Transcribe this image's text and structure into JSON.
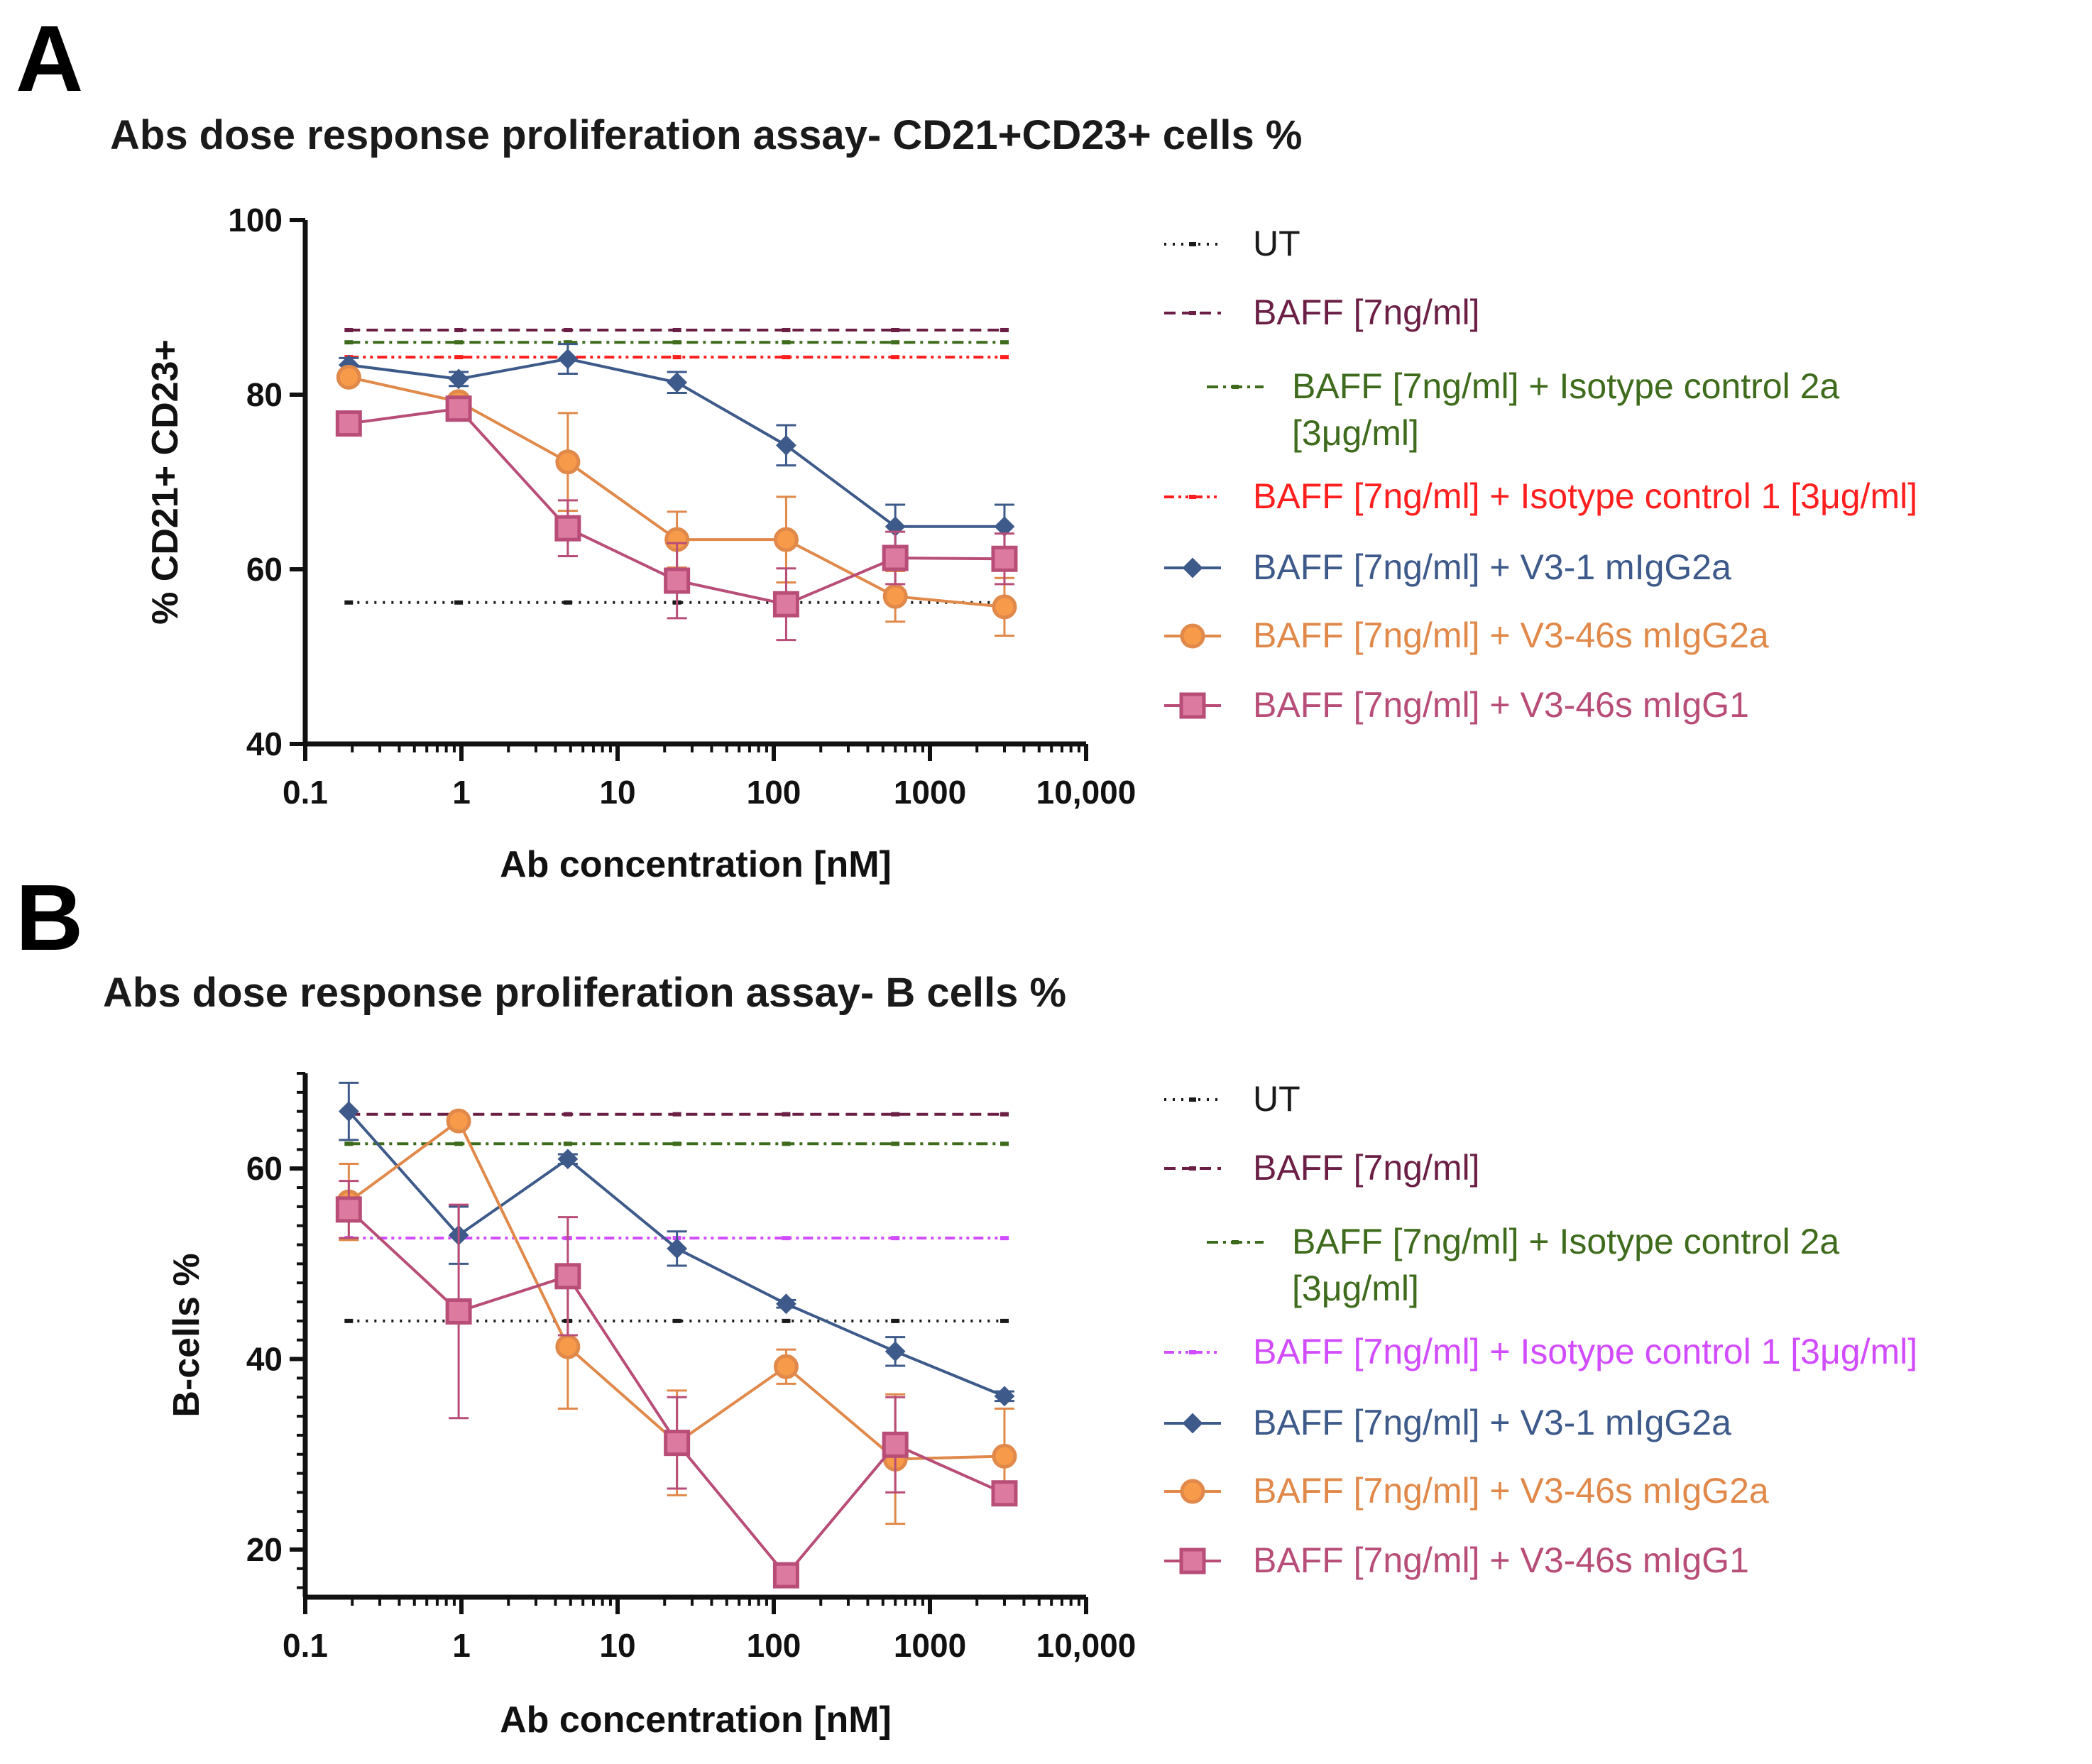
{
  "colors": {
    "ut": "#1a1a1a",
    "baff": "#6b1f45",
    "iso2a": "#3f6b1d",
    "iso1_a": "#ff1f1f",
    "iso1_b": "#d24cff",
    "v31": "#3d5a8a",
    "v346g2a": "#e0894a",
    "v346g1": "#b84d78"
  },
  "chart_data": [
    {
      "panel": "A",
      "type": "line",
      "title": "Abs dose response proliferation assay- CD21+CD23+ cells %",
      "xlabel": "Ab concentration [nM]",
      "ylabel": "% CD21+ CD23+",
      "xscale": "log",
      "xlim": [
        0.1,
        10000
      ],
      "ylim": [
        40,
        100
      ],
      "x_ticks": [
        0.1,
        1,
        10,
        100,
        1000,
        10000
      ],
      "x_tick_labels": [
        "0.1",
        "1",
        "10",
        "100",
        "1000",
        "10,000"
      ],
      "y_ticks": [
        40,
        60,
        80,
        100
      ],
      "y_tick_labels": [
        "40",
        "60",
        "80",
        "100"
      ],
      "legend_position": "right",
      "x": [
        0.19,
        0.96,
        4.8,
        24,
        120,
        600,
        3000
      ],
      "reference_lines": [
        {
          "name": "UT",
          "value": 56.2,
          "color_key": "ut",
          "dash": "dotted"
        },
        {
          "name": "BAFF [7ng/ml]",
          "value": 87.4,
          "color_key": "baff",
          "dash": "dashed"
        },
        {
          "name": "BAFF [7ng/ml] + Isotype control 2a",
          "name_line2": "[3μg/ml]",
          "value": 86.0,
          "color_key": "iso2a",
          "dash": "dashdot"
        },
        {
          "name": "BAFF [7ng/ml] + Isotype control 1 [3μg/ml]",
          "value": 84.3,
          "color_key": "iso1_a",
          "dash": "dashdotdot"
        }
      ],
      "series": [
        {
          "name": "BAFF [7ng/ml] + V3-1 mIgG2a",
          "marker": "diamond",
          "color_key": "v31",
          "values": [
            83.4,
            81.8,
            84.1,
            81.4,
            74.2,
            64.9,
            64.9
          ],
          "errors": [
            0.8,
            0.8,
            1.7,
            1.2,
            2.3,
            2.5,
            2.5
          ]
        },
        {
          "name": "BAFF [7ng/ml] + V3-46s mIgG2a",
          "marker": "circle",
          "color_key": "v346g2a",
          "values": [
            82.0,
            79.2,
            72.3,
            63.4,
            63.4,
            56.9,
            55.7
          ],
          "errors": [
            0.8,
            0.8,
            5.6,
            3.2,
            4.9,
            2.9,
            3.3
          ]
        },
        {
          "name": "BAFF [7ng/ml] + V3-46s mIgG1",
          "marker": "square",
          "color_key": "v346g1",
          "values": [
            76.7,
            78.4,
            64.7,
            58.7,
            56.0,
            61.3,
            61.2
          ],
          "errors": [
            0.8,
            0.8,
            3.2,
            4.3,
            4.1,
            3.0,
            2.9
          ]
        }
      ]
    },
    {
      "panel": "B",
      "type": "line",
      "title": "Abs dose response proliferation assay- B cells %",
      "xlabel": "Ab concentration [nM]",
      "ylabel": "B-cells %",
      "xscale": "log",
      "xlim": [
        0.1,
        10000
      ],
      "ylim": [
        15,
        70
      ],
      "x_ticks": [
        0.1,
        1,
        10,
        100,
        1000,
        10000
      ],
      "x_tick_labels": [
        "0.1",
        "1",
        "10",
        "100",
        "1000",
        "10,000"
      ],
      "y_ticks": [
        20,
        40,
        60
      ],
      "y_tick_labels": [
        "20",
        "40",
        "60"
      ],
      "legend_position": "right",
      "x": [
        0.19,
        0.96,
        4.8,
        24,
        120,
        600,
        3000
      ],
      "reference_lines": [
        {
          "name": "UT",
          "value": 44.0,
          "color_key": "ut",
          "dash": "dotted"
        },
        {
          "name": "BAFF [7ng/ml]",
          "value": 65.7,
          "color_key": "baff",
          "dash": "dashed"
        },
        {
          "name": "BAFF [7ng/ml] + Isotype control 2a",
          "name_line2": "[3μg/ml]",
          "value": 62.6,
          "color_key": "iso2a",
          "dash": "dashdot"
        },
        {
          "name": "BAFF [7ng/ml] + Isotype control 1 [3μg/ml]",
          "value": 52.7,
          "color_key": "iso1_b",
          "dash": "dashdotdot"
        }
      ],
      "series": [
        {
          "name": "BAFF [7ng/ml] + V3-1 mIgG2a",
          "marker": "diamond",
          "color_key": "v31",
          "values": [
            66.0,
            53.0,
            61.0,
            51.6,
            45.8,
            40.8,
            36.1
          ],
          "errors": [
            3.0,
            3.0,
            0.5,
            1.8,
            0.4,
            1.5,
            0.5
          ]
        },
        {
          "name": "BAFF [7ng/ml] + V3-46s mIgG2a",
          "marker": "circle",
          "color_key": "v346g2a",
          "values": [
            56.5,
            65.0,
            41.3,
            31.2,
            39.2,
            29.5,
            29.8
          ],
          "errors": [
            4.0,
            0.4,
            6.5,
            5.5,
            1.8,
            6.8,
            5.0
          ]
        },
        {
          "name": "BAFF [7ng/ml] + V3-46s mIgG1",
          "marker": "square",
          "color_key": "v346g1",
          "values": [
            55.7,
            45.0,
            48.7,
            31.2,
            17.3,
            31.0,
            25.9
          ],
          "errors": [
            3.0,
            11.2,
            6.2,
            4.8,
            0.8,
            5.0,
            1.0
          ]
        }
      ]
    }
  ]
}
